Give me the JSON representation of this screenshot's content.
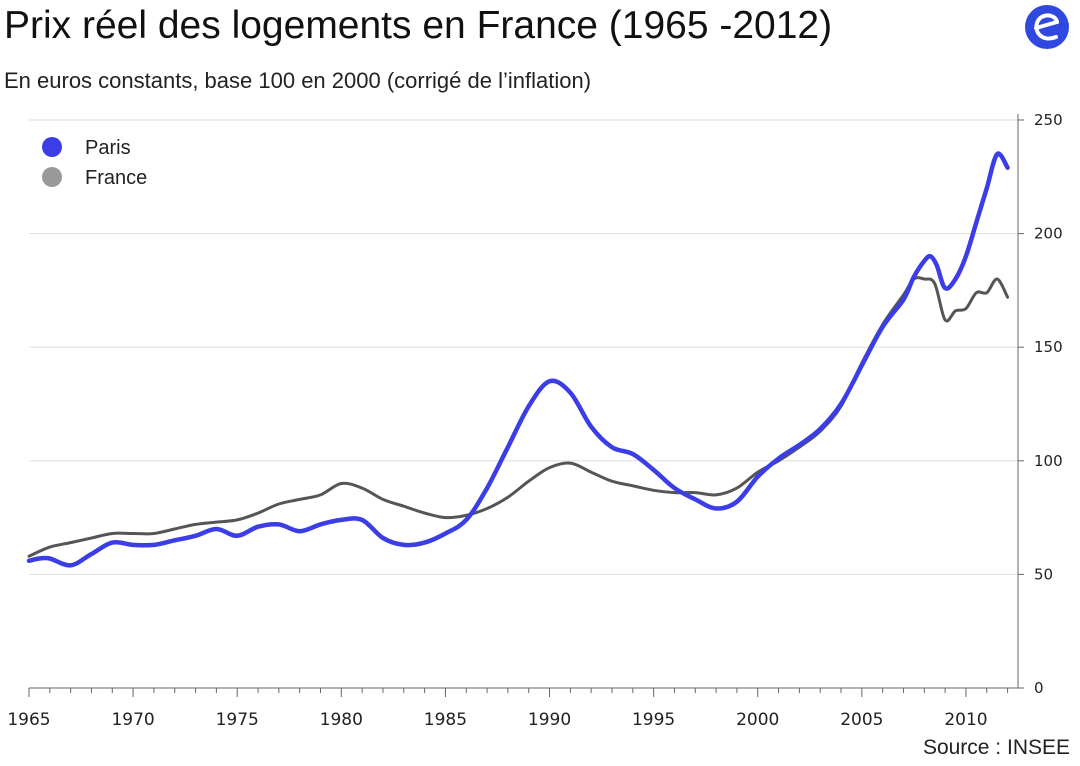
{
  "title": "Prix réel des logements en France (1965 -2012)",
  "subtitle": "En euros constants, base 100 en 2000 (corrigé de l’inflation)",
  "source": "Source : INSEE",
  "logo_icon": "e-circle-logo-icon",
  "colors": {
    "paris": "#3b3ee6",
    "france": "#555555",
    "france_legend": "#999999",
    "grid": "#dddddd",
    "logo": "#2f49e0"
  },
  "chart_data": {
    "type": "line",
    "title": "Prix réel des logements en France (1965 -2012)",
    "xlabel": "",
    "ylabel": "",
    "xlim": [
      1965,
      2012.5
    ],
    "ylim": [
      0,
      250
    ],
    "x_ticks": [
      1965,
      1970,
      1975,
      1980,
      1985,
      1990,
      1995,
      2000,
      2005,
      2010
    ],
    "x_tick_labels": [
      "1965",
      "1970",
      "1975",
      "1980",
      "1985",
      "1990",
      "1995",
      "2000",
      "2005",
      "2010"
    ],
    "y_ticks": [
      0,
      50,
      100,
      150,
      200,
      250
    ],
    "y_tick_labels": [
      "0",
      "50",
      "100",
      "150",
      "200",
      "250"
    ],
    "y_axis_side": "right",
    "legend_position": "top-left",
    "series": [
      {
        "name": "Paris",
        "x": [
          1965,
          1965.5,
          1966,
          1967,
          1968,
          1969,
          1970,
          1971,
          1972,
          1973,
          1974,
          1975,
          1976,
          1977,
          1978,
          1979,
          1980,
          1981,
          1982,
          1983,
          1984,
          1985,
          1986,
          1987,
          1988,
          1989,
          1990,
          1991,
          1992,
          1993,
          1994,
          1995,
          1996,
          1997,
          1998,
          1999,
          2000,
          2001,
          2002,
          2003,
          2004,
          2005,
          2006,
          2007,
          2007.5,
          2008,
          2008.3,
          2008.6,
          2009,
          2009.5,
          2010,
          2010.5,
          2011,
          2011.5,
          2012
        ],
        "values": [
          56,
          57,
          57,
          54,
          59,
          64,
          63,
          63,
          65,
          67,
          70,
          67,
          71,
          72,
          69,
          72,
          74,
          74,
          66,
          63,
          64,
          68,
          74,
          88,
          106,
          124,
          135,
          130,
          115,
          106,
          103,
          96,
          88,
          83,
          79,
          82,
          93,
          101,
          107,
          114,
          125,
          142,
          159,
          171,
          181,
          188,
          190,
          186,
          176,
          180,
          190,
          205,
          220,
          235,
          229
        ]
      },
      {
        "name": "France",
        "x": [
          1965,
          1966,
          1967,
          1968,
          1969,
          1970,
          1971,
          1972,
          1973,
          1974,
          1975,
          1976,
          1977,
          1978,
          1979,
          1980,
          1981,
          1982,
          1983,
          1984,
          1985,
          1986,
          1987,
          1988,
          1989,
          1990,
          1991,
          1992,
          1993,
          1994,
          1995,
          1996,
          1997,
          1998,
          1999,
          2000,
          2001,
          2002,
          2003,
          2004,
          2005,
          2006,
          2007,
          2007.5,
          2008,
          2008.5,
          2009,
          2009.5,
          2010,
          2010.5,
          2011,
          2011.5,
          2012
        ],
        "values": [
          58,
          62,
          64,
          66,
          68,
          68,
          68,
          70,
          72,
          73,
          74,
          77,
          81,
          83,
          85,
          90,
          88,
          83,
          80,
          77,
          75,
          76,
          79,
          84,
          91,
          97,
          99,
          95,
          91,
          89,
          87,
          86,
          86,
          85,
          88,
          95,
          100,
          106,
          113,
          124,
          143,
          160,
          173,
          180,
          180,
          178,
          162,
          166,
          167,
          174,
          174,
          180,
          172
        ]
      }
    ]
  }
}
